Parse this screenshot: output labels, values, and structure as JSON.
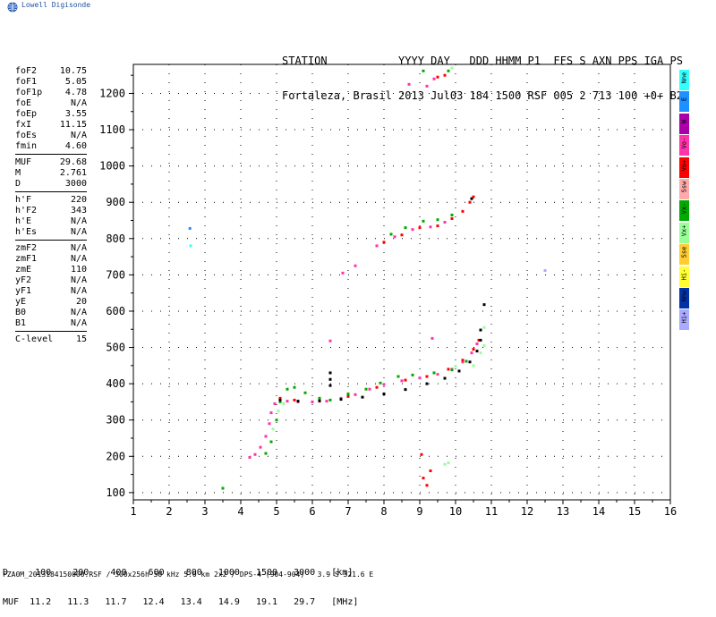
{
  "brand": {
    "logo_text": "Lowell Digisonde"
  },
  "header": {
    "line1": "STATION           YYYY DAY   DDD HHMM P1  FFS S AXN PPS IGA PS",
    "line2": "Fortaleza, Brasil 2013 Jul03 184 1500 RSF 005 2 713 100 +0+ B2"
  },
  "params": [
    {
      "k": "foF2",
      "v": "10.75"
    },
    {
      "k": "foF1",
      "v": "5.05"
    },
    {
      "k": "foF1p",
      "v": "4.78"
    },
    {
      "k": "foE",
      "v": "N/A"
    },
    {
      "k": "foEp",
      "v": "3.55"
    },
    {
      "k": "fxI",
      "v": "11.15"
    },
    {
      "k": "foEs",
      "v": "N/A"
    },
    {
      "k": "fmin",
      "v": "4.60"
    },
    {
      "sep": true
    },
    {
      "k": "MUF",
      "v": "29.68"
    },
    {
      "k": "M",
      "v": "2.761"
    },
    {
      "k": "D",
      "v": "3000"
    },
    {
      "sep": true
    },
    {
      "k": "h'F",
      "v": "220"
    },
    {
      "k": "h'F2",
      "v": "343"
    },
    {
      "k": "h'E",
      "v": "N/A"
    },
    {
      "k": "h'Es",
      "v": "N/A"
    },
    {
      "sep": true
    },
    {
      "k": "zmF2",
      "v": "N/A"
    },
    {
      "k": "zmF1",
      "v": "N/A"
    },
    {
      "k": "zmE",
      "v": "110"
    },
    {
      "k": "yF2",
      "v": "N/A"
    },
    {
      "k": "yF1",
      "v": "N/A"
    },
    {
      "k": "yE",
      "v": "20"
    },
    {
      "k": "B0",
      "v": "N/A"
    },
    {
      "k": "B1",
      "v": "N/A"
    },
    {
      "sep": true
    },
    {
      "k": "C-level",
      "v": "15"
    }
  ],
  "legend": [
    {
      "label": "Nne",
      "color": "#33ffff"
    },
    {
      "label": "E",
      "color": "#1e90ff"
    },
    {
      "label": "W",
      "color": "#aa00aa"
    },
    {
      "label": "Vo-",
      "color": "#ff33aa"
    },
    {
      "label": "Vo+",
      "color": "#ff0000"
    },
    {
      "label": "Ssw",
      "color": "#ffaaaa"
    },
    {
      "label": "Vx-",
      "color": "#00aa00"
    },
    {
      "label": "Vx+",
      "color": "#99ff99"
    },
    {
      "label": "Sse",
      "color": "#ffcc33"
    },
    {
      "label": "Hi-",
      "color": "#ffff33"
    },
    {
      "label": "Nnw",
      "color": "#0033aa"
    },
    {
      "label": "Hi+",
      "color": "#aaaaff"
    }
  ],
  "footer": {
    "line1": "D     100    200    400    600    800   1000   1500   3000   [km]",
    "line2": "MUF  11.2   11.3   11.7   12.4   13.4   14.9   19.1   29.7   [MHz]",
    "file": "FZA0M_2013184150000.RSF / 300x256h 50 kHz 5.0 km 2x2 / DPS-4 (904-904)   3.9 S 321.6 E"
  },
  "chart_data": {
    "type": "scatter",
    "xlim": [
      1,
      16
    ],
    "ylim": [
      80,
      1280
    ],
    "x_ticks": [
      1,
      2,
      3,
      4,
      5,
      6,
      7,
      8,
      9,
      10,
      11,
      12,
      13,
      14,
      15,
      16
    ],
    "y_ticks": [
      100,
      200,
      300,
      400,
      500,
      600,
      700,
      800,
      900,
      1000,
      1100,
      1200
    ],
    "grid": true,
    "series": [
      {
        "color": "#ff33aa",
        "points": [
          [
            4.25,
            197
          ],
          [
            4.4,
            205
          ],
          [
            4.55,
            225
          ],
          [
            4.7,
            255
          ],
          [
            4.8,
            290
          ],
          [
            4.85,
            320
          ],
          [
            4.95,
            345
          ],
          [
            5.1,
            358
          ],
          [
            5.3,
            352
          ],
          [
            5.6,
            350
          ],
          [
            6.0,
            350
          ],
          [
            6.4,
            352
          ],
          [
            6.8,
            360
          ],
          [
            7.2,
            370
          ],
          [
            7.6,
            385
          ],
          [
            8.0,
            398
          ],
          [
            8.5,
            408
          ],
          [
            9.0,
            416
          ],
          [
            9.5,
            426
          ],
          [
            9.9,
            440
          ],
          [
            10.2,
            460
          ],
          [
            10.45,
            485
          ],
          [
            10.6,
            510
          ],
          [
            6.85,
            705
          ],
          [
            7.2,
            725
          ],
          [
            7.8,
            780
          ],
          [
            8.3,
            805
          ],
          [
            8.8,
            825
          ],
          [
            9.3,
            832
          ],
          [
            9.7,
            845
          ],
          [
            9.2,
            1220
          ],
          [
            9.4,
            1240
          ],
          [
            8.7,
            1225
          ],
          [
            6.5,
            518
          ],
          [
            9.35,
            525
          ]
        ]
      },
      {
        "color": "#ff0000",
        "points": [
          [
            5.1,
            360
          ],
          [
            5.5,
            355
          ],
          [
            6.2,
            352
          ],
          [
            7.0,
            365
          ],
          [
            7.8,
            390
          ],
          [
            8.6,
            410
          ],
          [
            9.2,
            420
          ],
          [
            9.8,
            440
          ],
          [
            10.2,
            465
          ],
          [
            10.5,
            495
          ],
          [
            10.65,
            520
          ],
          [
            8.0,
            790
          ],
          [
            8.5,
            810
          ],
          [
            9.0,
            830
          ],
          [
            9.5,
            835
          ],
          [
            9.9,
            855
          ],
          [
            10.2,
            875
          ],
          [
            10.4,
            900
          ],
          [
            10.5,
            915
          ],
          [
            9.5,
            1245
          ],
          [
            9.7,
            1250
          ],
          [
            9.1,
            140
          ],
          [
            9.3,
            160
          ],
          [
            9.2,
            120
          ],
          [
            9.05,
            205
          ]
        ]
      },
      {
        "color": "#00aa00",
        "points": [
          [
            4.7,
            208
          ],
          [
            4.85,
            240
          ],
          [
            5.0,
            300
          ],
          [
            5.1,
            350
          ],
          [
            5.3,
            385
          ],
          [
            5.5,
            390
          ],
          [
            5.8,
            375
          ],
          [
            6.2,
            360
          ],
          [
            6.5,
            355
          ],
          [
            7.0,
            372
          ],
          [
            7.5,
            385
          ],
          [
            7.9,
            402
          ],
          [
            8.4,
            420
          ],
          [
            8.8,
            424
          ],
          [
            9.4,
            430
          ],
          [
            9.9,
            438
          ],
          [
            10.3,
            462
          ],
          [
            8.2,
            812
          ],
          [
            8.6,
            830
          ],
          [
            9.1,
            848
          ],
          [
            9.5,
            852
          ],
          [
            9.9,
            865
          ],
          [
            9.1,
            1262
          ],
          [
            9.8,
            1262
          ],
          [
            3.5,
            112
          ]
        ]
      },
      {
        "color": "#99ff99",
        "points": [
          [
            4.9,
            275
          ],
          [
            5.05,
            325
          ],
          [
            5.2,
            345
          ],
          [
            10.5,
            450
          ],
          [
            10.7,
            485
          ],
          [
            10.8,
            505
          ],
          [
            10.0,
            448
          ],
          [
            10.8,
            555
          ],
          [
            9.7,
            178
          ],
          [
            9.8,
            182
          ],
          [
            9.9,
            1270
          ]
        ]
      },
      {
        "color": "#000000",
        "points": [
          [
            5.1,
            355
          ],
          [
            5.6,
            352
          ],
          [
            6.2,
            353
          ],
          [
            6.8,
            357
          ],
          [
            7.4,
            363
          ],
          [
            8.0,
            372
          ],
          [
            8.6,
            384
          ],
          [
            9.2,
            400
          ],
          [
            9.7,
            415
          ],
          [
            10.1,
            435
          ],
          [
            10.4,
            460
          ],
          [
            10.6,
            490
          ],
          [
            10.7,
            520
          ],
          [
            6.5,
            430
          ],
          [
            6.5,
            412
          ],
          [
            6.5,
            395
          ],
          [
            10.8,
            618
          ],
          [
            10.7,
            548
          ],
          [
            10.45,
            910
          ]
        ]
      },
      {
        "color": "#1e90ff",
        "points": [
          [
            2.58,
            828
          ]
        ]
      },
      {
        "color": "#33ffff",
        "points": [
          [
            2.6,
            780
          ]
        ]
      },
      {
        "color": "#aaaaff",
        "points": [
          [
            12.5,
            712
          ]
        ]
      }
    ]
  }
}
